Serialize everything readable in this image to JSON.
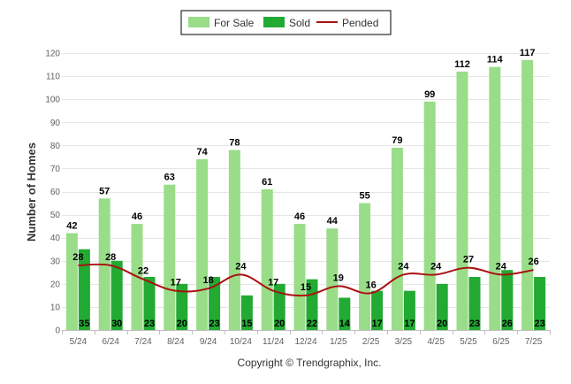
{
  "chart_data": {
    "type": "bar",
    "categories": [
      "5/24",
      "6/24",
      "7/24",
      "8/24",
      "9/24",
      "10/24",
      "11/24",
      "12/24",
      "1/25",
      "2/25",
      "3/25",
      "4/25",
      "5/25",
      "6/25",
      "7/25"
    ],
    "series": [
      {
        "name": "For Sale",
        "type": "bar",
        "color": "#99dd88",
        "values": [
          42,
          57,
          46,
          63,
          74,
          78,
          61,
          46,
          44,
          55,
          79,
          99,
          112,
          114,
          117
        ]
      },
      {
        "name": "Sold",
        "type": "bar",
        "color": "#22aa33",
        "values": [
          35,
          30,
          23,
          20,
          23,
          15,
          20,
          22,
          14,
          17,
          17,
          20,
          23,
          26,
          23
        ]
      },
      {
        "name": "Pended",
        "type": "line",
        "color": "#aa1111",
        "values": [
          28,
          28,
          22,
          17,
          18,
          24,
          17,
          15,
          19,
          16,
          24,
          24,
          27,
          24,
          26
        ]
      }
    ],
    "ylabel": "Number of Homes",
    "xlabel": "",
    "ylim": [
      0,
      120
    ],
    "yticks": [
      0,
      10,
      20,
      30,
      40,
      50,
      60,
      70,
      80,
      90,
      100,
      110,
      120
    ],
    "grid": true,
    "legend": "top-center"
  },
  "footer": {
    "copyright": "Copyright © Trendgraphix, Inc."
  }
}
